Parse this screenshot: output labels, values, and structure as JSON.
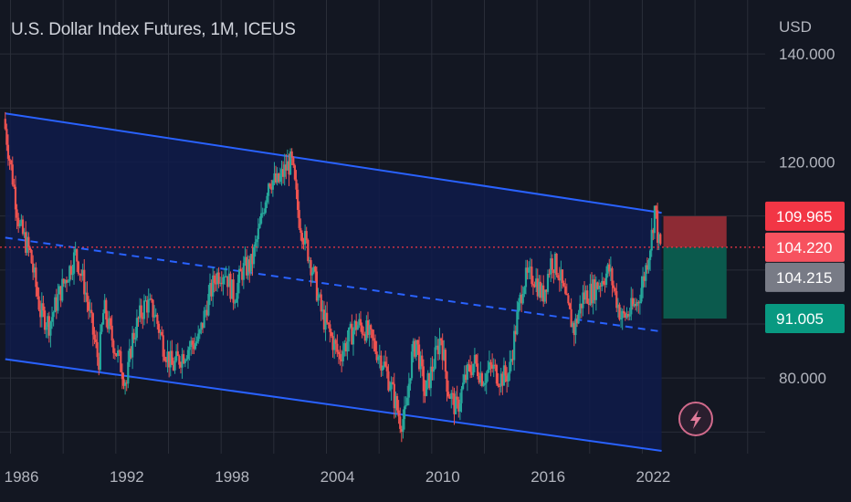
{
  "chart_data": {
    "type": "candlestick",
    "title": "U.S. Dollar Index Futures, 1M, ICEUS",
    "currency": "USD",
    "x_ticks": [
      "1986",
      "1992",
      "1998",
      "2004",
      "2010",
      "2016",
      "2022"
    ],
    "x_range": [
      1985.4,
      2029.0
    ],
    "y_ticks": [
      {
        "value": 140,
        "label": "140.000"
      },
      {
        "value": 120,
        "label": "120.000"
      },
      {
        "value": 80,
        "label": "80.000"
      }
    ],
    "y_range": [
      66,
      150
    ],
    "price_path": [
      [
        1985.7,
        128
      ],
      [
        1986.2,
        117
      ],
      [
        1986.6,
        108
      ],
      [
        1987.2,
        103
      ],
      [
        1987.8,
        92
      ],
      [
        1988.3,
        90
      ],
      [
        1988.8,
        95
      ],
      [
        1989.3,
        99
      ],
      [
        1989.8,
        103
      ],
      [
        1990.3,
        97
      ],
      [
        1990.8,
        88
      ],
      [
        1991.1,
        83
      ],
      [
        1991.4,
        93
      ],
      [
        1991.8,
        88
      ],
      [
        1992.2,
        84
      ],
      [
        1992.7,
        79
      ],
      [
        1993.0,
        87
      ],
      [
        1993.4,
        91
      ],
      [
        1993.8,
        94
      ],
      [
        1994.3,
        92
      ],
      [
        1994.8,
        86
      ],
      [
        1995.3,
        82
      ],
      [
        1995.8,
        84
      ],
      [
        1996.3,
        86
      ],
      [
        1996.8,
        87
      ],
      [
        1997.3,
        94
      ],
      [
        1997.8,
        99
      ],
      [
        1998.3,
        100
      ],
      [
        1998.8,
        95
      ],
      [
        1999.3,
        100
      ],
      [
        1999.8,
        101
      ],
      [
        2000.3,
        108
      ],
      [
        2000.8,
        117
      ],
      [
        2001.3,
        116
      ],
      [
        2001.8,
        119
      ],
      [
        2002.1,
        120
      ],
      [
        2002.5,
        110
      ],
      [
        2002.9,
        105
      ],
      [
        2003.3,
        100
      ],
      [
        2003.8,
        92
      ],
      [
        2004.3,
        88
      ],
      [
        2004.8,
        84
      ],
      [
        2005.3,
        87
      ],
      [
        2005.8,
        90
      ],
      [
        2006.3,
        89
      ],
      [
        2006.8,
        86
      ],
      [
        2007.3,
        83
      ],
      [
        2007.8,
        78
      ],
      [
        2008.3,
        72
      ],
      [
        2008.6,
        73
      ],
      [
        2008.9,
        83
      ],
      [
        2009.2,
        87
      ],
      [
        2009.7,
        77
      ],
      [
        2010.3,
        84
      ],
      [
        2010.6,
        88
      ],
      [
        2011.0,
        78
      ],
      [
        2011.5,
        74
      ],
      [
        2012.0,
        80
      ],
      [
        2012.5,
        83
      ],
      [
        2013.0,
        80
      ],
      [
        2013.5,
        82
      ],
      [
        2014.0,
        80
      ],
      [
        2014.5,
        81
      ],
      [
        2014.9,
        90
      ],
      [
        2015.3,
        98
      ],
      [
        2015.9,
        99
      ],
      [
        2016.4,
        95
      ],
      [
        2016.9,
        102
      ],
      [
        2017.3,
        100
      ],
      [
        2017.8,
        93
      ],
      [
        2018.2,
        89
      ],
      [
        2018.7,
        95
      ],
      [
        2019.2,
        96
      ],
      [
        2019.7,
        98
      ],
      [
        2020.2,
        100
      ],
      [
        2020.5,
        96
      ],
      [
        2020.9,
        91
      ],
      [
        2021.3,
        92
      ],
      [
        2021.8,
        94
      ],
      [
        2022.2,
        99
      ],
      [
        2022.6,
        106
      ],
      [
        2022.8,
        112
      ],
      [
        2023.0,
        105
      ],
      [
        2023.1,
        104.2
      ]
    ],
    "channel": {
      "upper": [
        [
          1985.7,
          129
        ],
        [
          2023.1,
          110.6
        ]
      ],
      "lower": [
        [
          1985.7,
          83.5
        ],
        [
          2023.1,
          66.5
        ]
      ],
      "mid": [
        [
          1985.7,
          106
        ],
        [
          2023.1,
          88.6
        ]
      ]
    },
    "position": {
      "stop_price": 109.965,
      "entry_price": 104.22,
      "target_price": 91.005,
      "x_from": 2023.2,
      "x_to": 2026.8
    },
    "last_price_line": 104.22,
    "price_tags": [
      {
        "value": 109.965,
        "label": "109.965",
        "color": "#f23645",
        "text_color": "#ffffff"
      },
      {
        "value": 104.22,
        "label": "104.220",
        "color": "#f7525f",
        "text_color": "#ffffff"
      },
      {
        "value": 104.215,
        "label": "104.215",
        "color": "#787b86",
        "text_color": "#ffffff"
      },
      {
        "value": 91.005,
        "label": "91.005",
        "color": "#089981",
        "text_color": "#ffffff"
      }
    ],
    "colors": {
      "background": "#131722",
      "grid": "#2a2e39",
      "up_candle": "#26a69a",
      "down_candle": "#ef5350",
      "channel_line": "#2962ff",
      "channel_fill": "#0f1b4a",
      "stop_zone": "#8d2b34",
      "target_zone": "#0b5a4d",
      "last_price_line": "#f23645"
    },
    "icons": {
      "replay": "lightning-bolt-icon"
    }
  }
}
